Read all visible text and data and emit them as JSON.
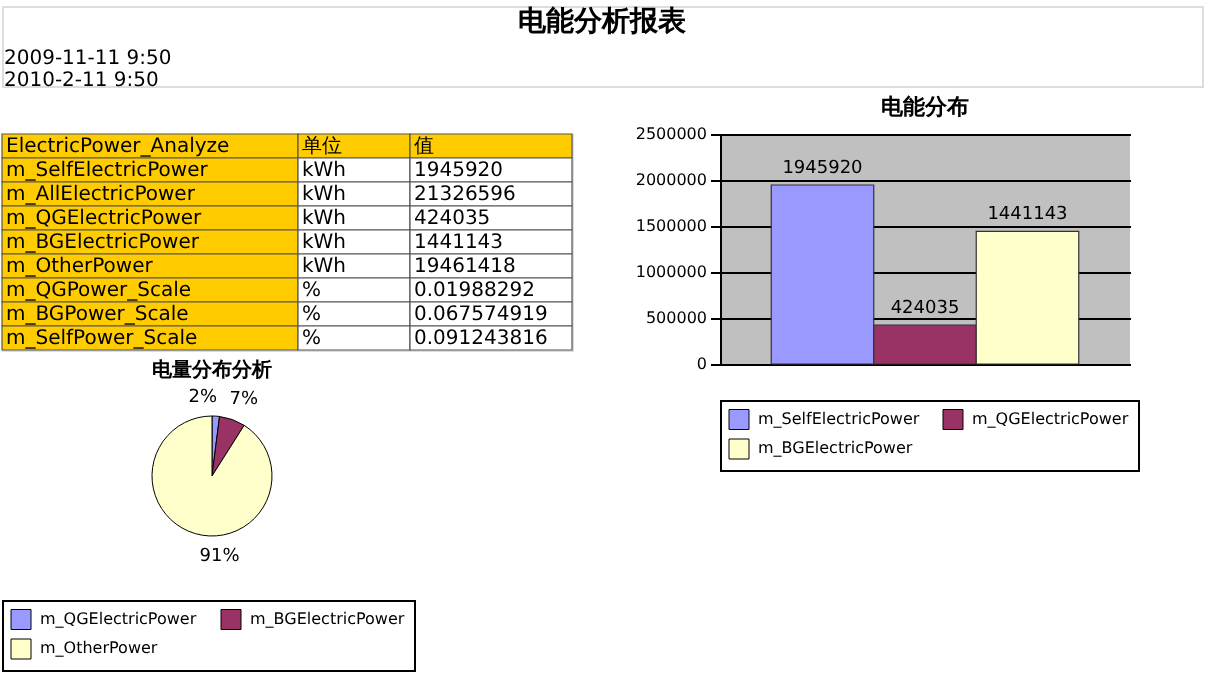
{
  "chart_data": [
    {
      "type": "other",
      "title": "电能分析报表",
      "annotations": [
        "2009-11-11 9:50",
        "2010-2-11 9:50"
      ]
    },
    {
      "type": "other",
      "annotations": [
        "ElectricPower_Analyze",
        "单位",
        "值",
        "m_SelfElectricPower",
        "kWh",
        "1945920",
        "m_AllElectricPower",
        "kWh",
        "21326596",
        "m_QGElectricPower",
        "kWh",
        "424035",
        "m_BGElectricPower",
        "kWh",
        "1441143",
        "m_OtherPower",
        "kWh",
        "19461418",
        "m_QGPower_Scale",
        "%",
        "0.01988292",
        "m_BGPower_Scale",
        "%",
        "0.067574919",
        "m_SelfPower_Scale",
        "%",
        "0.091243816"
      ]
    },
    {
      "type": "pie",
      "title": "电量分布分析",
      "categories": [
        "m_QGElectricPower",
        "m_BGElectricPower",
        "m_OtherPower"
      ],
      "values": [
        2,
        7,
        91
      ],
      "value_labels": [
        "2%",
        "7%",
        "91%"
      ],
      "colors": [
        "#9999ff",
        "#993366",
        "#ffffcc"
      ],
      "legend": "bottom"
    },
    {
      "type": "bar",
      "title": "电能分布",
      "categories": [
        null
      ],
      "series": [
        {
          "name": "m_SelfElectricPower",
          "color": "#9999ff",
          "values": [
            1945920
          ]
        },
        {
          "name": "m_QGElectricPower",
          "color": "#993366",
          "values": [
            424035
          ]
        },
        {
          "name": "m_BGElectricPower",
          "color": "#ffffcc",
          "values": [
            1441143
          ]
        }
      ],
      "ylim": [
        0,
        2500000
      ],
      "yticks": [
        0,
        500000,
        1000000,
        1500000,
        2000000,
        2500000
      ],
      "grid": "y",
      "data_labels": true,
      "legend": "bottom"
    }
  ]
}
